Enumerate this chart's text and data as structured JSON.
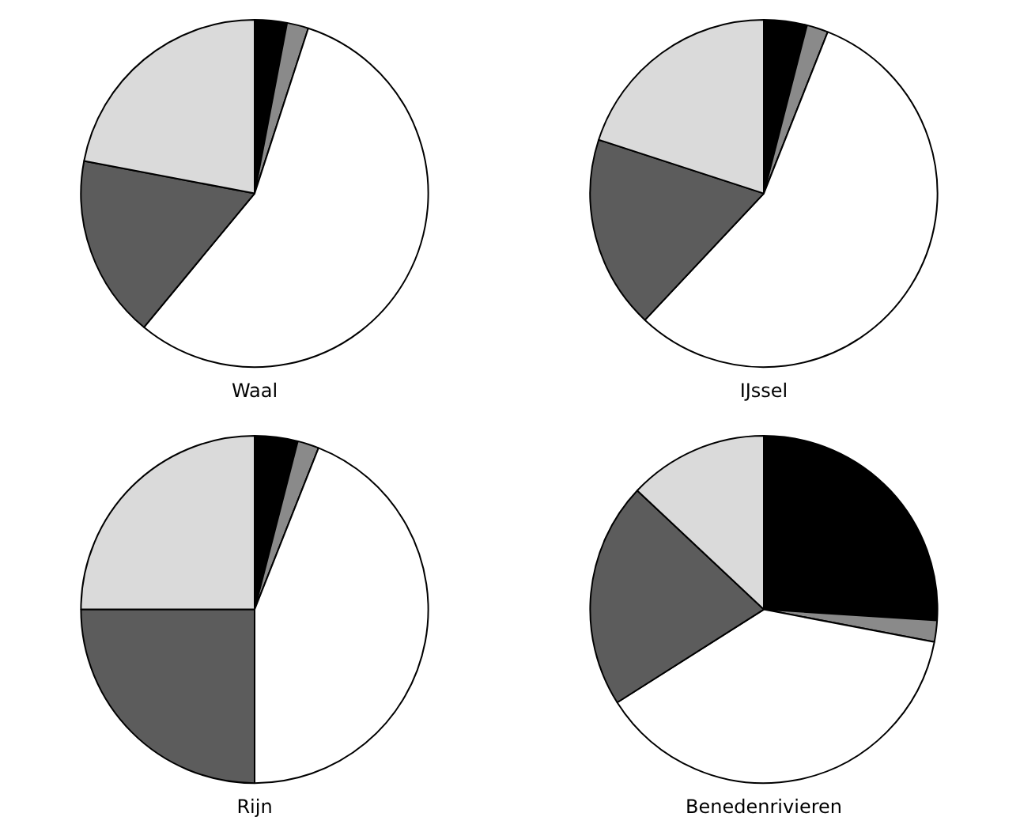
{
  "chart_data": [
    {
      "type": "pie",
      "title": "Waal",
      "categories": [
        null,
        null,
        null,
        null,
        null
      ],
      "values": [
        3,
        2,
        56,
        17,
        22
      ],
      "colors": [
        "#000000",
        "#8a8a8a",
        "#ffffff",
        "#5c5c5c",
        "#dadada"
      ],
      "legend": false
    },
    {
      "type": "pie",
      "title": "IJssel",
      "categories": [
        null,
        null,
        null,
        null,
        null
      ],
      "values": [
        4,
        2,
        56,
        18,
        20
      ],
      "colors": [
        "#000000",
        "#8a8a8a",
        "#ffffff",
        "#5c5c5c",
        "#dadada"
      ],
      "legend": false
    },
    {
      "type": "pie",
      "title": "Rijn",
      "categories": [
        null,
        null,
        null,
        null,
        null
      ],
      "values": [
        4,
        2,
        44,
        25,
        25
      ],
      "colors": [
        "#000000",
        "#8a8a8a",
        "#ffffff",
        "#5c5c5c",
        "#dadada"
      ],
      "legend": false
    },
    {
      "type": "pie",
      "title": "Benedenrivieren",
      "categories": [
        null,
        null,
        null,
        null,
        null
      ],
      "values": [
        26,
        2,
        38,
        21,
        13
      ],
      "colors": [
        "#000000",
        "#8a8a8a",
        "#ffffff",
        "#5c5c5c",
        "#dadada"
      ],
      "legend": false
    }
  ]
}
